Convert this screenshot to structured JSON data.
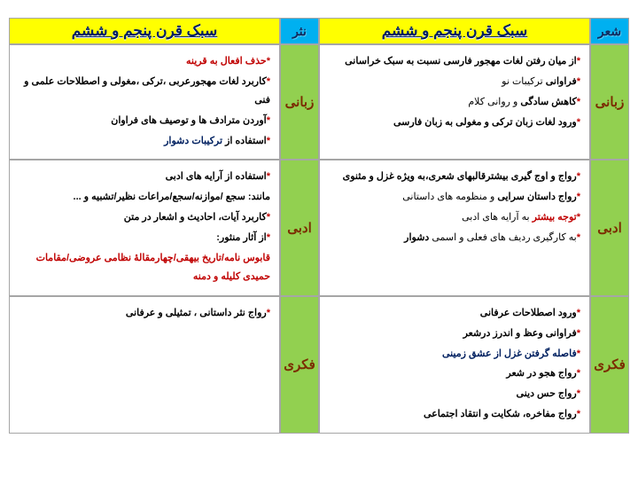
{
  "headers": {
    "col1_label": "شعر",
    "col2_title": "سبک قرن پنجم و ششم",
    "col3_label": "نثر",
    "col4_title": "سبک قرن پنجم و ششم"
  },
  "rows": {
    "r1_label": "زبانی",
    "r1_poem": {
      "l1_a": "از میان رفتن لغات مهجور فارسی نسبت به سبک خراسانی",
      "l2_a": "فراوانی",
      "l2_b": " ترکیبات نو",
      "l3_a": "کاهش سادگی",
      "l3_b": " و روانی کلام",
      "l4_a": "ورود لغات زبان ترکی و مغولی به زبان فارسی"
    },
    "r1_prose": {
      "l1_a": "حذف افعال به قرینه",
      "l2_a": "کاربرد لغات مهجورعربی ،ترکی ،مغولی و اصطلاحات علمی و فنی",
      "l3_a": "آوردن مترادف ها و توصیف های فراوان",
      "l4_a": "استفاده از ",
      "l4_b": "ترکیبات دشوار"
    },
    "r2_label": "ادبی",
    "r2_poem": {
      "l1_a": "رواج و اوج گیری بیشترقالبهای شعری،",
      "l1_b": "به ویژه غزل و مثنوی",
      "l2_a": "رواج داستان سرایی",
      "l2_b": " و منظومه های داستانی",
      "l3_a": "توجه بیشتر",
      "l3_b": " به آرایه های ادبی",
      "l4_a": "به کارگیری ردیف های فعلی و اسمی ",
      "l4_b": "دشوار"
    },
    "r2_prose": {
      "l1_a": "استفاده از آرایه های ادبی",
      "l2_a": "مانند: سجع /موازنه/سجع/مراعات نظیر/تشبیه و ...",
      "l3_a": "کاربرد آیات، احادیث و اشعار در متن",
      "l4_a": "از آثار منثور:",
      "l5_a": "قابوس نامه/تاریخ بیهقی/چهارمقالهٔ نظامی عروضی/مقامات حمیدی کلیله و دمنه"
    },
    "r3_label": "فکری",
    "r3_poem": {
      "l1_a": "ورود اصطلاحات عرفانی",
      "l2_a": "فراوانی وعظ و اندرز درشعر",
      "l3_a": "فاصله گرفتن غزل از عشق زمینی",
      "l4_a": "رواج هجو در شعر",
      "l5_a": "رواج حس دینی",
      "l6_a": "رواج مفاخره، شکایت و انتقاد اجتماعی"
    },
    "r3_prose": {
      "l1_a": "رواج نثر داستانی ، تمثیلی و عرفانی"
    }
  },
  "colors": {
    "header_label_bg": "#00b0f0",
    "header_title_bg": "#ffff00",
    "row_label_bg": "#92d050",
    "content_bg": "#ffffff",
    "border": "#a6a6a6",
    "title_text": "#002060",
    "row_label_text": "#7b2c00",
    "star": "#c00000"
  }
}
